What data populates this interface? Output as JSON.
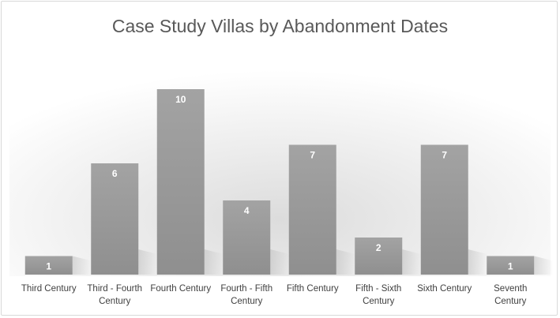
{
  "chart_data": {
    "type": "bar",
    "title": "Case Study Villas by Abandonment Dates",
    "xlabel": "",
    "ylabel": "",
    "categories": [
      [
        "Third Century"
      ],
      [
        "Third - Fourth",
        "Century"
      ],
      [
        "Fourth Century"
      ],
      [
        "Fourth - Fifth",
        "Century"
      ],
      [
        "Fifth Century"
      ],
      [
        "Fifth - Sixth",
        "Century"
      ],
      [
        "Sixth Century"
      ],
      [
        "Seventh",
        "Century"
      ]
    ],
    "values": [
      1,
      6,
      10,
      4,
      7,
      2,
      7,
      1
    ],
    "ylim": [
      0,
      10
    ],
    "data_labels": true,
    "grid": false,
    "legend": "none",
    "colors": {
      "bar_top": "#a3a3a3",
      "bar_bottom": "#8f8f8f",
      "label": "#ffffff",
      "title": "#595959",
      "axis_text": "#404040",
      "wall": "#e3e3e3"
    }
  }
}
